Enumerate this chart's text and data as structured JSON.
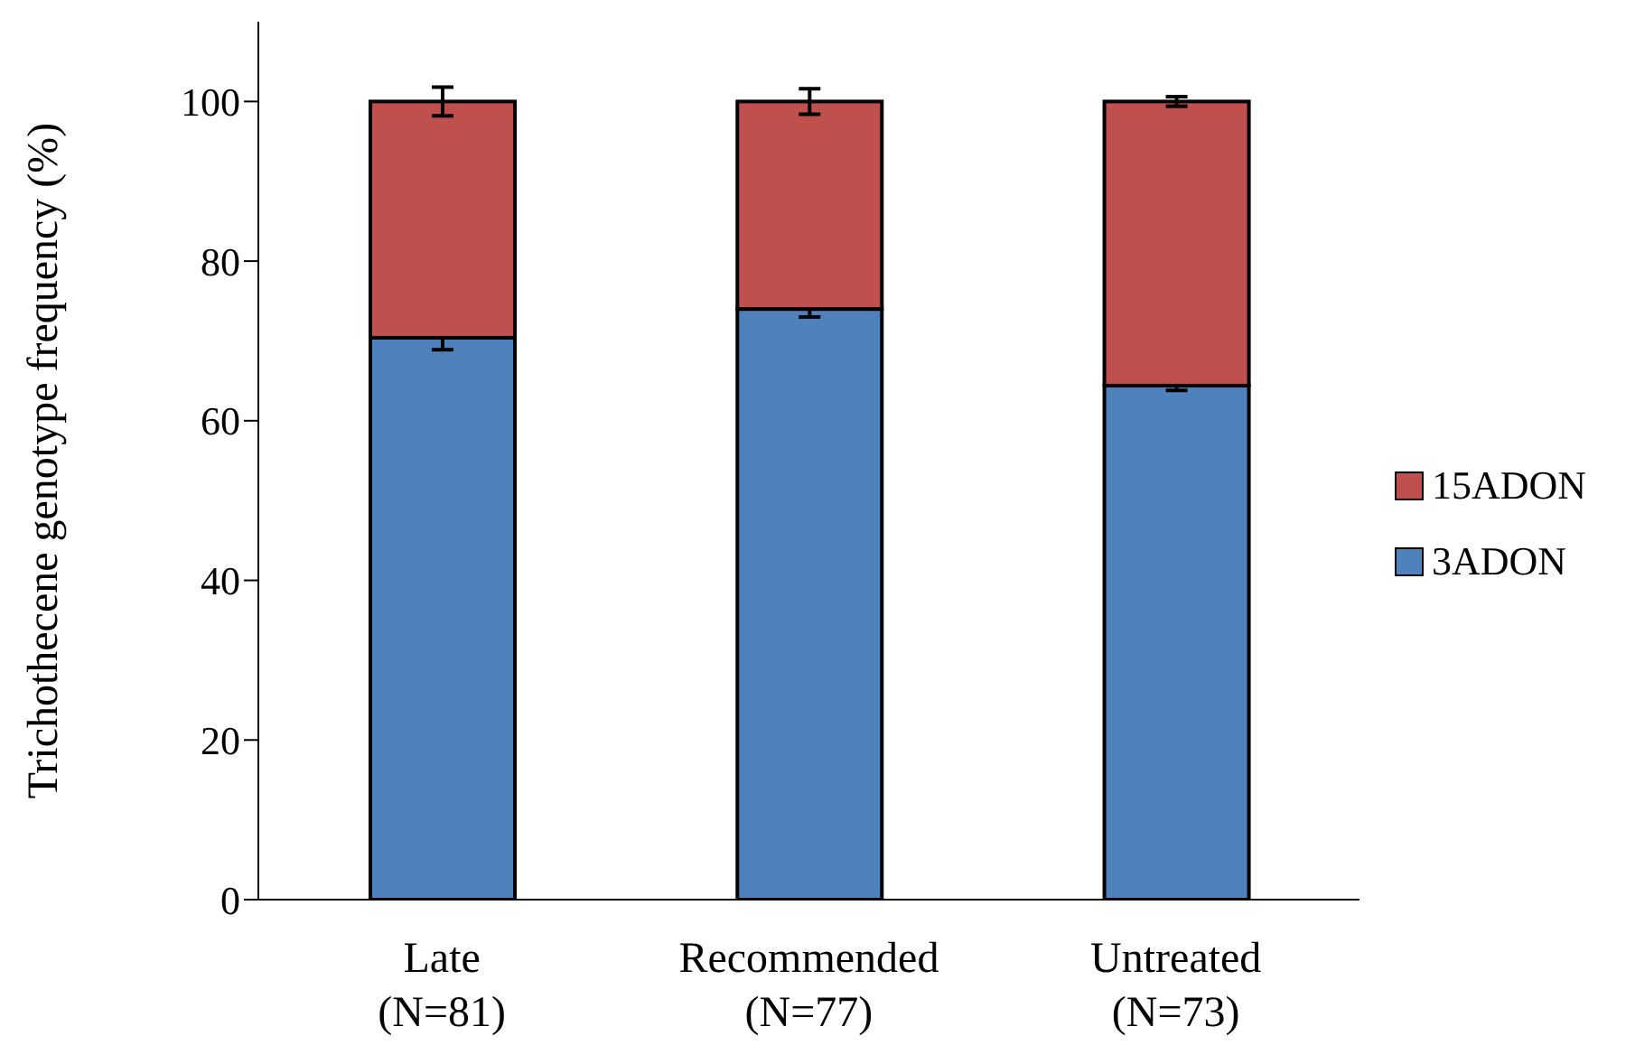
{
  "chart_data": {
    "type": "bar",
    "stacked": true,
    "ylabel": "Trichothecene genotype frequency (%)",
    "categories": [
      "Late\n(N=81)",
      "Recommended\n(N=77)",
      "Untreated\n(N=73)"
    ],
    "series": [
      {
        "name": "3ADON",
        "color": "#4f81bd",
        "values": [
          70.4,
          74.0,
          64.4
        ],
        "errors": [
          1.5,
          1.0,
          0.6
        ]
      },
      {
        "name": "15ADON",
        "color": "#c0504d",
        "values": [
          29.6,
          26.0,
          35.6
        ],
        "errors": [
          1.8,
          1.6,
          0.6
        ]
      }
    ],
    "ylim": [
      0,
      110
    ],
    "yticks": [
      0,
      20,
      40,
      60,
      80,
      100
    ],
    "grid": false,
    "legend": "right"
  }
}
